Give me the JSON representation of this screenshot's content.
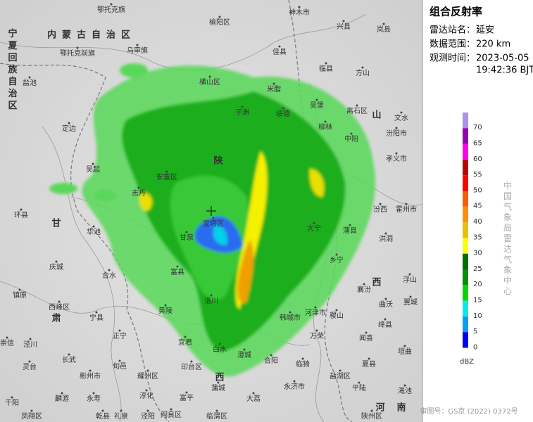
{
  "header": {
    "title": "组合反射率",
    "station_label": "雷达站名：",
    "station": "延安",
    "range_label": "数据范围：",
    "range": "220 km",
    "time_label": "观测时间：",
    "date": "2023-05-05",
    "time": "19:42:36 BJT"
  },
  "legend": {
    "unit": "dBZ",
    "levels": [
      0,
      5,
      10,
      15,
      20,
      25,
      30,
      35,
      40,
      45,
      50,
      55,
      60,
      65,
      70
    ],
    "colors": [
      "#0000f6",
      "#00a0f6",
      "#00ecec",
      "#00d800",
      "#009000",
      "#006e00",
      "#ffff00",
      "#e7c000",
      "#ff9000",
      "#ff5a00",
      "#ff0000",
      "#c00000",
      "#ff00f0",
      "#9600b4",
      "#ad90f0"
    ]
  },
  "watermark": "中国气象局雷达气象中心",
  "footer": "审图号：GS京 (2022) 0372号",
  "regions": [
    "内蒙古自治区",
    "宁夏回族自治区",
    "陕",
    "甘",
    "肃",
    "山",
    "西",
    "西",
    "河",
    "南"
  ],
  "places": [
    "鄂托克旗",
    "神木市",
    "兴县",
    "岚县",
    "榆阳区",
    "鄂托克前旗",
    "乌审旗",
    "佳县",
    "临县",
    "方山",
    "盐池",
    "横山区",
    "米脂",
    "离石区",
    "文水",
    "定边",
    "子洲",
    "绥德",
    "吴堡",
    "柳林",
    "中阳",
    "汾阳市",
    "吴起",
    "安塞区",
    "孝义市",
    "环县",
    "志丹",
    "华池",
    "宝塔区",
    "大宁",
    "蒲县",
    "甘泉",
    "庆城",
    "合水",
    "富县",
    "乡宁",
    "汾西",
    "霍州市",
    "洪洞",
    "浮山",
    "襄汾",
    "翼城",
    "曲沃",
    "绛县",
    "稷山",
    "河津市",
    "韩城市",
    "镇原",
    "西峰区",
    "黄陵",
    "洛川",
    "宁县",
    "正宁",
    "宜君",
    "白水",
    "澄城",
    "合阳",
    "万荣",
    "闻喜",
    "崇信",
    "泾川",
    "灵台",
    "长武",
    "彬州市",
    "旬邑",
    "耀州区",
    "印台区",
    "临猗",
    "夏县",
    "垣曲",
    "蒲城",
    "大荔",
    "永济市",
    "盐湖区",
    "平陆",
    "千阳",
    "麟游",
    "永寿",
    "淳化",
    "富平",
    "陕州区",
    "凤翔区",
    "乾县",
    "礼泉",
    "泾阳",
    "阎良区",
    "临渭区",
    "渑池"
  ]
}
